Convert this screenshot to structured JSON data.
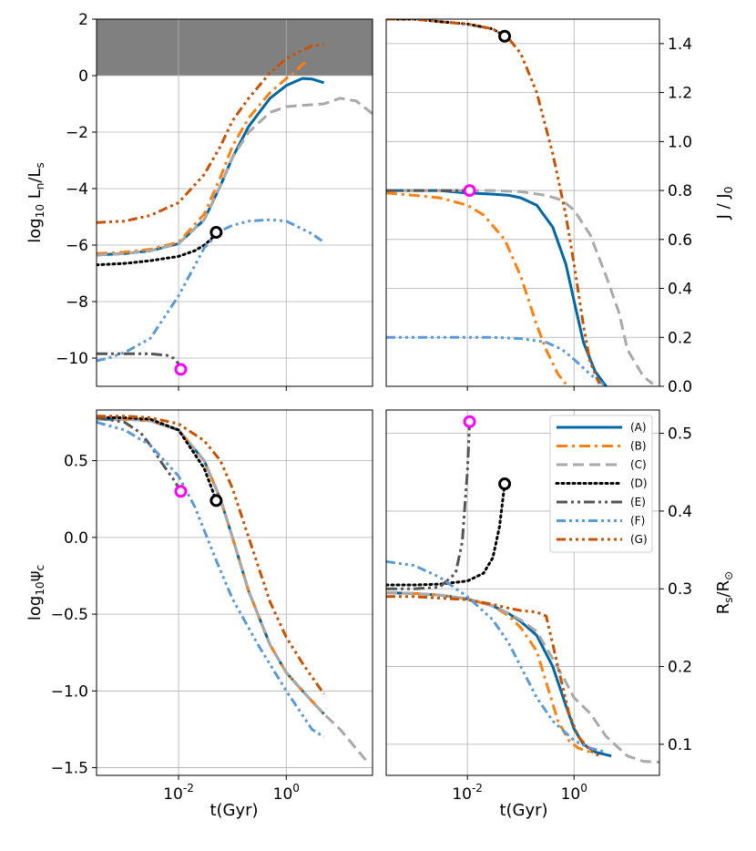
{
  "figure": {
    "x_axis_label": "t(Gyr)",
    "x_tick_labels": [
      "10^-2",
      "10^0"
    ]
  },
  "legend": {
    "entries": [
      {
        "label": "(A)",
        "color": "#0068a5",
        "dash": "solid"
      },
      {
        "label": "(B)",
        "color": "#ff7f0e",
        "dash": "dashdot"
      },
      {
        "label": "(C)",
        "color": "#a9a9a9",
        "dash": "dashed"
      },
      {
        "label": "(D)",
        "color": "#000000",
        "dash": "dotted"
      },
      {
        "label": "(E)",
        "color": "#555555",
        "dash": "dashdotdot"
      },
      {
        "label": "(F)",
        "color": "#5b9bd5",
        "dash": "dashdotdotdot"
      },
      {
        "label": "(G)",
        "color": "#c85200",
        "dash": "dashdotdotdot"
      }
    ]
  },
  "chart_data": [
    {
      "type": "line",
      "panel": "top-left",
      "ylabel": "log10 Ln/Ls",
      "xscale": "log",
      "xlim": [
        0.0003,
        40
      ],
      "ylim": [
        -11,
        2
      ],
      "y_ticks": [
        2,
        0,
        -2,
        -4,
        -6,
        -8,
        -10
      ],
      "shaded_region": {
        "y_from": 0,
        "y_to": 2,
        "color": "#808080"
      },
      "series": [
        {
          "name": "(A)",
          "x": [
            0.0003,
            0.001,
            0.003,
            0.01,
            0.03,
            0.06,
            0.1,
            0.2,
            0.5,
            1,
            1.5,
            2,
            3,
            5
          ],
          "y": [
            -6.35,
            -6.3,
            -6.2,
            -5.95,
            -5.1,
            -3.9,
            -2.9,
            -1.8,
            -0.8,
            -0.35,
            -0.2,
            -0.1,
            -0.12,
            -0.25
          ]
        },
        {
          "name": "(B)",
          "x": [
            0.0003,
            0.001,
            0.003,
            0.01,
            0.03,
            0.06,
            0.1,
            0.2,
            0.5,
            1,
            1.5,
            2,
            2.5
          ],
          "y": [
            -6.3,
            -6.25,
            -6.15,
            -5.9,
            -4.9,
            -3.6,
            -2.5,
            -1.5,
            -0.6,
            -0.1,
            0.15,
            0.4,
            0.5
          ]
        },
        {
          "name": "(C)",
          "x": [
            0.0003,
            0.001,
            0.003,
            0.01,
            0.03,
            0.06,
            0.1,
            0.2,
            0.5,
            1,
            2,
            5,
            10,
            20,
            40
          ],
          "y": [
            -6.35,
            -6.3,
            -6.2,
            -5.95,
            -5.1,
            -3.9,
            -2.9,
            -2.0,
            -1.3,
            -1.1,
            -1.05,
            -1.0,
            -0.8,
            -0.9,
            -1.35
          ]
        },
        {
          "name": "(D)",
          "x": [
            0.0003,
            0.001,
            0.003,
            0.01,
            0.02,
            0.03,
            0.04,
            0.05
          ],
          "y": [
            -6.7,
            -6.65,
            -6.55,
            -6.4,
            -6.2,
            -6.0,
            -5.8,
            -5.55
          ]
        },
        {
          "name": "(E)",
          "x": [
            0.0003,
            0.001,
            0.003,
            0.006,
            0.008,
            0.01,
            0.011
          ],
          "y": [
            -9.85,
            -9.85,
            -9.85,
            -9.9,
            -10.0,
            -10.2,
            -10.4
          ]
        },
        {
          "name": "(F)",
          "x": [
            0.0003,
            0.0005,
            0.001,
            0.003,
            0.01,
            0.03,
            0.06,
            0.1,
            0.2,
            0.5,
            1,
            3,
            5
          ],
          "y": [
            -10.1,
            -10.0,
            -9.8,
            -9.3,
            -7.8,
            -6.1,
            -5.5,
            -5.3,
            -5.15,
            -5.1,
            -5.15,
            -5.6,
            -5.9
          ]
        },
        {
          "name": "(G)",
          "x": [
            0.0003,
            0.001,
            0.003,
            0.01,
            0.03,
            0.06,
            0.1,
            0.2,
            0.5,
            1,
            2,
            3,
            5
          ],
          "y": [
            -5.2,
            -5.15,
            -4.95,
            -4.5,
            -3.5,
            -2.5,
            -1.6,
            -0.8,
            0.1,
            0.6,
            0.9,
            1.05,
            1.1
          ]
        }
      ],
      "markers": [
        {
          "name": "(D) end",
          "x": 0.05,
          "y": -5.55,
          "color": "#000000"
        },
        {
          "name": "(E) end",
          "x": 0.011,
          "y": -10.4,
          "color": "#ff00ff"
        }
      ]
    },
    {
      "type": "line",
      "panel": "top-right",
      "ylabel": "J / J0",
      "xscale": "log",
      "xlim": [
        0.0003,
        40
      ],
      "ylim": [
        0,
        1.5
      ],
      "y_ticks": [
        1.4,
        1.2,
        1.0,
        0.8,
        0.6,
        0.4,
        0.2,
        0.0
      ],
      "series": [
        {
          "name": "(A)",
          "x": [
            0.0003,
            0.001,
            0.003,
            0.01,
            0.03,
            0.06,
            0.1,
            0.2,
            0.4,
            0.7,
            1,
            1.5,
            2.5,
            4
          ],
          "y": [
            0.8,
            0.8,
            0.8,
            0.79,
            0.785,
            0.78,
            0.77,
            0.74,
            0.65,
            0.5,
            0.35,
            0.18,
            0.06,
            0.0
          ]
        },
        {
          "name": "(B)",
          "x": [
            0.0003,
            0.001,
            0.003,
            0.01,
            0.02,
            0.05,
            0.1,
            0.2,
            0.3,
            0.5,
            0.7
          ],
          "y": [
            0.79,
            0.78,
            0.77,
            0.74,
            0.7,
            0.6,
            0.45,
            0.25,
            0.15,
            0.05,
            0.01
          ]
        },
        {
          "name": "(C)",
          "x": [
            0.0003,
            0.001,
            0.003,
            0.01,
            0.03,
            0.1,
            0.3,
            0.6,
            1,
            2,
            4,
            7,
            10,
            20,
            30
          ],
          "y": [
            0.8,
            0.8,
            0.8,
            0.8,
            0.8,
            0.795,
            0.78,
            0.76,
            0.72,
            0.62,
            0.45,
            0.3,
            0.15,
            0.04,
            0.01
          ]
        },
        {
          "name": "(D)",
          "x": [
            0.0003,
            0.001,
            0.003,
            0.01,
            0.03,
            0.05
          ],
          "y": [
            1.5,
            1.5,
            1.49,
            1.48,
            1.46,
            1.43
          ]
        },
        {
          "name": "(E)",
          "x": [
            0.0003,
            0.001,
            0.003,
            0.006,
            0.011
          ],
          "y": [
            0.8,
            0.8,
            0.8,
            0.8,
            0.8
          ]
        },
        {
          "name": "(F)",
          "x": [
            0.0003,
            0.001,
            0.003,
            0.01,
            0.03,
            0.1,
            0.3,
            0.6,
            1,
            2,
            3,
            4
          ],
          "y": [
            0.2,
            0.2,
            0.2,
            0.2,
            0.2,
            0.195,
            0.18,
            0.15,
            0.11,
            0.05,
            0.02,
            0.0
          ]
        },
        {
          "name": "(G)",
          "x": [
            0.0003,
            0.001,
            0.003,
            0.01,
            0.03,
            0.06,
            0.1,
            0.2,
            0.4,
            0.7,
            1,
            1.5,
            2,
            3
          ],
          "y": [
            1.5,
            1.5,
            1.49,
            1.48,
            1.46,
            1.42,
            1.36,
            1.2,
            0.95,
            0.7,
            0.5,
            0.25,
            0.1,
            0.01
          ]
        }
      ],
      "markers": [
        {
          "name": "(D) end",
          "x": 0.05,
          "y": 1.43,
          "color": "#000000"
        },
        {
          "name": "(E) end",
          "x": 0.011,
          "y": 0.8,
          "color": "#ff00ff"
        }
      ]
    },
    {
      "type": "line",
      "panel": "bottom-left",
      "ylabel": "log10 psi_c",
      "xscale": "log",
      "xlim": [
        0.0003,
        40
      ],
      "ylim": [
        -1.55,
        0.83
      ],
      "y_ticks": [
        0.5,
        0.0,
        -0.5,
        -1.0,
        -1.5
      ],
      "series": [
        {
          "name": "(A)",
          "x": [
            0.0003,
            0.001,
            0.003,
            0.01,
            0.03,
            0.06,
            0.1,
            0.2,
            0.5,
            1,
            2,
            5
          ],
          "y": [
            0.77,
            0.77,
            0.76,
            0.7,
            0.5,
            0.25,
            0.0,
            -0.35,
            -0.7,
            -0.88,
            -1.0,
            -1.15
          ]
        },
        {
          "name": "(B)",
          "x": [
            0.0003,
            0.001,
            0.003,
            0.01,
            0.03,
            0.06,
            0.1,
            0.2,
            0.5,
            1,
            2,
            5
          ],
          "y": [
            0.77,
            0.77,
            0.76,
            0.7,
            0.5,
            0.25,
            0.0,
            -0.35,
            -0.7,
            -0.88,
            -1.0,
            -1.15
          ]
        },
        {
          "name": "(C)",
          "x": [
            0.0003,
            0.001,
            0.003,
            0.01,
            0.03,
            0.06,
            0.1,
            0.2,
            0.5,
            1,
            2,
            5,
            10,
            30
          ],
          "y": [
            0.77,
            0.77,
            0.76,
            0.7,
            0.5,
            0.25,
            0.0,
            -0.35,
            -0.7,
            -0.88,
            -1.0,
            -1.15,
            -1.25,
            -1.45
          ]
        },
        {
          "name": "(D)",
          "x": [
            0.0003,
            0.001,
            0.003,
            0.01,
            0.03,
            0.05
          ],
          "y": [
            0.78,
            0.78,
            0.77,
            0.7,
            0.45,
            0.24
          ]
        },
        {
          "name": "(E)",
          "x": [
            0.0003,
            0.001,
            0.002,
            0.003,
            0.005,
            0.008,
            0.011
          ],
          "y": [
            0.78,
            0.75,
            0.68,
            0.6,
            0.48,
            0.38,
            0.3
          ]
        },
        {
          "name": "(F)",
          "x": [
            0.0003,
            0.001,
            0.003,
            0.01,
            0.02,
            0.05,
            0.1,
            0.3,
            1,
            3,
            5
          ],
          "y": [
            0.75,
            0.7,
            0.6,
            0.4,
            0.2,
            -0.15,
            -0.4,
            -0.7,
            -1.0,
            -1.25,
            -1.3
          ]
        },
        {
          "name": "(G)",
          "x": [
            0.0003,
            0.001,
            0.003,
            0.01,
            0.03,
            0.06,
            0.1,
            0.2,
            0.5,
            1,
            2,
            5
          ],
          "y": [
            0.79,
            0.79,
            0.78,
            0.74,
            0.63,
            0.5,
            0.32,
            0.0,
            -0.42,
            -0.65,
            -0.82,
            -1.02
          ]
        }
      ],
      "markers": [
        {
          "name": "(D) end",
          "x": 0.05,
          "y": 0.24,
          "color": "#000000"
        },
        {
          "name": "(E) end",
          "x": 0.011,
          "y": 0.3,
          "color": "#ff00ff"
        }
      ]
    },
    {
      "type": "line",
      "panel": "bottom-right",
      "ylabel": "Rs/R_sun",
      "xscale": "log",
      "xlim": [
        0.0003,
        40
      ],
      "ylim": [
        0.06,
        0.53
      ],
      "y_ticks": [
        0.5,
        0.4,
        0.3,
        0.2,
        0.1
      ],
      "series": [
        {
          "name": "(A)",
          "x": [
            0.0003,
            0.001,
            0.003,
            0.01,
            0.03,
            0.06,
            0.1,
            0.2,
            0.4,
            0.7,
            1,
            1.5,
            2.5,
            5
          ],
          "y": [
            0.295,
            0.294,
            0.292,
            0.287,
            0.278,
            0.268,
            0.258,
            0.24,
            0.2,
            0.15,
            0.12,
            0.1,
            0.09,
            0.085
          ]
        },
        {
          "name": "(B)",
          "x": [
            0.0003,
            0.001,
            0.003,
            0.01,
            0.03,
            0.06,
            0.1,
            0.2,
            0.3,
            0.5,
            0.8,
            1.2,
            2
          ],
          "y": [
            0.295,
            0.294,
            0.292,
            0.287,
            0.278,
            0.265,
            0.25,
            0.22,
            0.18,
            0.13,
            0.105,
            0.095,
            0.09
          ]
        },
        {
          "name": "(C)",
          "x": [
            0.0003,
            0.001,
            0.003,
            0.01,
            0.03,
            0.06,
            0.1,
            0.2,
            0.4,
            0.7,
            1,
            2,
            4,
            10,
            20,
            40
          ],
          "y": [
            0.295,
            0.294,
            0.292,
            0.287,
            0.278,
            0.268,
            0.26,
            0.245,
            0.21,
            0.18,
            0.16,
            0.14,
            0.11,
            0.085,
            0.078,
            0.077
          ]
        },
        {
          "name": "(D)",
          "x": [
            0.0003,
            0.001,
            0.003,
            0.01,
            0.02,
            0.03,
            0.04,
            0.05
          ],
          "y": [
            0.305,
            0.305,
            0.306,
            0.31,
            0.32,
            0.34,
            0.38,
            0.435
          ]
        },
        {
          "name": "(E)",
          "x": [
            0.0003,
            0.001,
            0.003,
            0.006,
            0.008,
            0.01,
            0.011
          ],
          "y": [
            0.3,
            0.3,
            0.302,
            0.32,
            0.36,
            0.45,
            0.515
          ]
        },
        {
          "name": "(F)",
          "x": [
            0.0003,
            0.001,
            0.003,
            0.01,
            0.03,
            0.06,
            0.1,
            0.2,
            0.4,
            1,
            2,
            4
          ],
          "y": [
            0.335,
            0.33,
            0.315,
            0.29,
            0.26,
            0.23,
            0.2,
            0.16,
            0.13,
            0.105,
            0.095,
            0.09
          ]
        },
        {
          "name": "(G)",
          "x": [
            0.0003,
            0.001,
            0.003,
            0.01,
            0.03,
            0.06,
            0.1,
            0.2,
            0.3,
            0.5,
            0.8,
            1.2,
            2,
            3
          ],
          "y": [
            0.29,
            0.29,
            0.288,
            0.286,
            0.28,
            0.275,
            0.272,
            0.27,
            0.265,
            0.2,
            0.14,
            0.11,
            0.092,
            0.085
          ]
        }
      ],
      "markers": [
        {
          "name": "(D) end",
          "x": 0.05,
          "y": 0.435,
          "color": "#000000"
        },
        {
          "name": "(E) end",
          "x": 0.011,
          "y": 0.515,
          "color": "#ff00ff"
        }
      ]
    }
  ]
}
